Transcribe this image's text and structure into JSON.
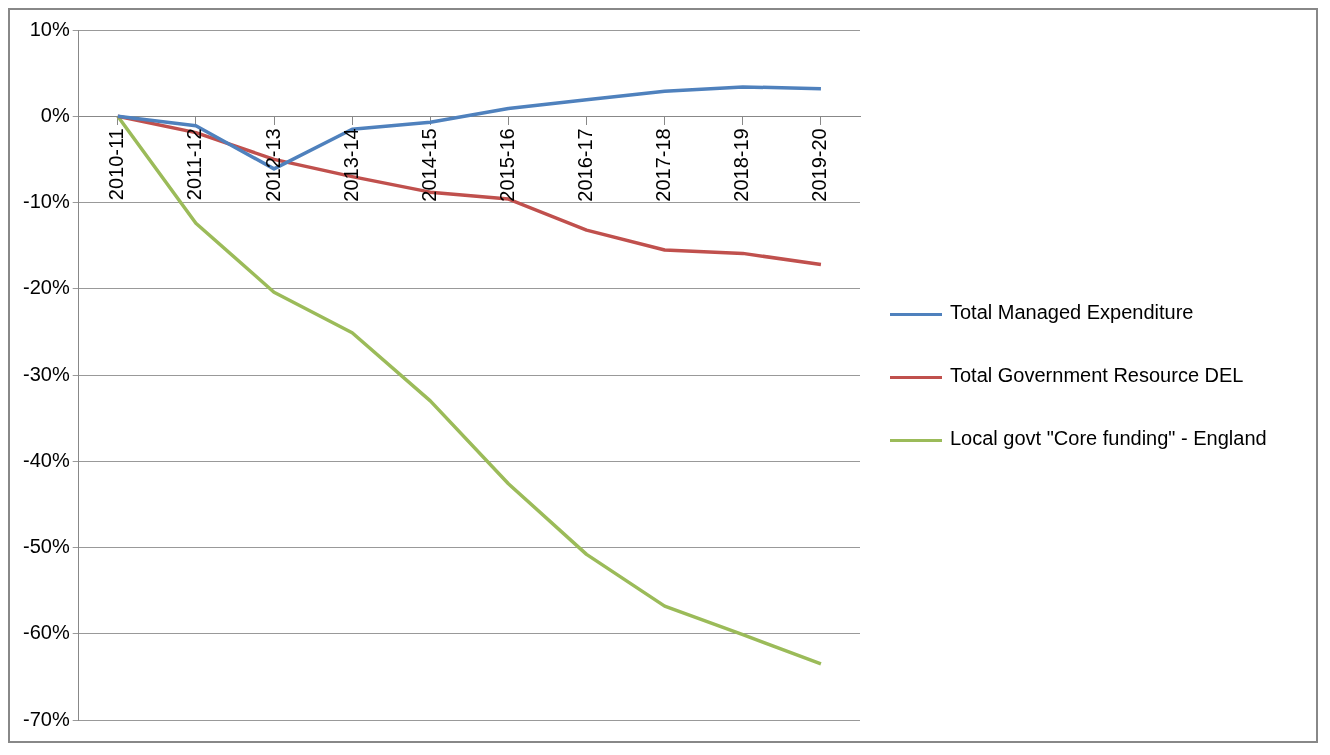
{
  "chart_data": {
    "type": "line",
    "categories": [
      "2010-11",
      "2011-12",
      "2012-13",
      "2013-14",
      "2014-15",
      "2015-16",
      "2016-17",
      "2017-18",
      "2018-19",
      "2019-20"
    ],
    "series": [
      {
        "name": "Total Managed Expenditure",
        "color": "#4f81bd",
        "values": [
          0,
          -1.1,
          -6.1,
          -1.5,
          -0.7,
          0.9,
          1.9,
          2.9,
          3.4,
          3.2
        ]
      },
      {
        "name": "Total Government Resource DEL",
        "color": "#c0504d",
        "values": [
          0,
          -1.9,
          -5.0,
          -7.0,
          -8.8,
          -9.6,
          -13.2,
          -15.5,
          -15.9,
          -17.2
        ]
      },
      {
        "name": "Local govt \"Core funding\" - England",
        "color": "#9bbb59",
        "values": [
          0,
          -12.4,
          -20.4,
          -25.1,
          -33.0,
          -42.6,
          -50.8,
          -56.8,
          -60.1,
          -63.5
        ]
      }
    ],
    "ylim": [
      -70,
      10
    ],
    "yticks": [
      {
        "value": 10,
        "label": "10%"
      },
      {
        "value": 0,
        "label": "0%"
      },
      {
        "value": -10,
        "label": "-10%"
      },
      {
        "value": -20,
        "label": "-20%"
      },
      {
        "value": -30,
        "label": "-30%"
      },
      {
        "value": -40,
        "label": "-40%"
      },
      {
        "value": -50,
        "label": "-50%"
      },
      {
        "value": -60,
        "label": "-60%"
      },
      {
        "value": -70,
        "label": "-70%"
      }
    ],
    "grid": "y",
    "legend": "right",
    "marker": "none",
    "line_style": "solid"
  }
}
